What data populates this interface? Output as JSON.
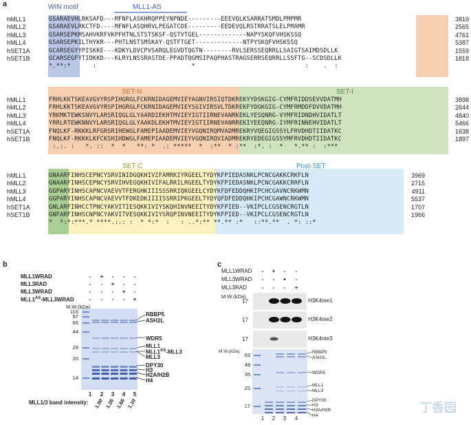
{
  "panel_a": {
    "letter": "a",
    "regions": {
      "win_motif": "WIN motif",
      "mll1_as": "MLL1-AS",
      "set_n": "SET-N",
      "set_i": "SET-I",
      "set_c": "SET-C",
      "post_set": "Post-SET"
    },
    "colors": {
      "win": "#b9c6e6",
      "orange": "#f5cfaf",
      "green": "#cfe4be",
      "darkgreen": "#a9cf95",
      "yellow": "#fbf2c0",
      "blue": "#d6ebf6",
      "as_bar": "#8aa0d8"
    },
    "block1": {
      "rows": [
        {
          "name": "hMLL1",
          "seq": "GSARAEVHLRKSAFD---MFNFLASKHRQPPEYNPNDE---------EEEVQLKSARRATSMDLPMPMR",
          "num": "3819"
        },
        {
          "name": "hMLL2",
          "seq": "GSARAEVLRKCTFD----MFNFLASQHRVLPEGATCDE---------EEDEVQLRSTRRATSLELPMAMR",
          "num": "2565"
        },
        {
          "name": "hMLL3",
          "seq": "GSARSEPKMSAHVKRFVKPFHTNLSTSTSKSF-QSTVTGEL-------------NAPYSKQFVHSKSSQ",
          "num": "4761"
        },
        {
          "name": "hMLL4",
          "seq": "GSARSEPKILTHYKR---PHTLNSTSMSKAY-QSTFTGET-------------NTPYSKQFVHSKSSQ",
          "num": "5387"
        },
        {
          "name": "hSET1A",
          "seq": "GCARSEGYYPISKKE---KDKYLDVCPVSARQLEGVDTQGTN--------RVLSERSSEQRRLLSAIGTSAIMDSDLLK",
          "num": "1559"
        },
        {
          "name": "hSET1B",
          "seq": "GCARSEGFYTIDKKD---KLRYLNSSRASTDE-PPADTQGMSIPAQPHASTRAGSERRSEQRRLLSSFTG--SCDSDLLK",
          "num": "1818"
        }
      ],
      "consensus": "*.**:*      :                          *                              :    .  :"
    },
    "block2": {
      "rows": [
        {
          "name": "hMLL1",
          "seq": "FRHLKKTSKEAVGVYRSPIHGRGLFCKRNIDAGEMVIEYAGNVIRSIQTDKREKYYDSKGIG-CYMFRIDDSEVVDATMH",
          "num": "3898"
        },
        {
          "name": "hMLL2",
          "seq": "FRHLKKTSKEAVGVYRSPIHGRGLFCKRNIDAGEMVIEYSGIVIRSVLTDKREKFYDGKGIG-CYMFRMDDFDVVDATMH",
          "num": "2644"
        },
        {
          "name": "hMLL3",
          "seq": "YRKMKTEWKSNVYLARSRIQGLGLYAARDIEKHTMVIEYIGTIIRNEVANRKEKLYESQNRG-VYMFRIDNDHVIDATLT",
          "num": "4840"
        },
        {
          "name": "hMLL4",
          "seq": "YRRLRTEWKNNVYLARSRIQGLGLYAAKDLEKHTMVIEYIGTIIRNEVANRREKIYEEQNRG-IYMFRINNEHVIDATLT",
          "num": "5466"
        },
        {
          "name": "hSET1A",
          "seq": "FNQLKF-RKKKLRFGRSRIHEWGLFAMEPIAADEMVIEYVGQNIRQMVADMREKRYVQEGIGSSYLFRVDHDTIIDATKC",
          "num": "1638"
        },
        {
          "name": "hSET1B",
          "seq": "FNQLKF-RKKKLKFCKSHIHDWGLFAMEPIAADEMVIEYVGQNIRQVIADMREKRYEDEGIGSSYMFRVDHDTIIDATKC",
          "num": "1897"
        }
      ],
      "consensus": " :.:. :   *. ::  *  *   **: *  .: *****  *  :**  * :**  :*. :  *   *.** :  :***"
    },
    "block3": {
      "rows": [
        {
          "name": "hMLL1",
          "seq": "GNAARFINHSCEPNCYSRVINIDGQKHIVIFAMRKIYRGEELTYDYKFPIEDASNKLPCNCGAKKCRKFLN",
          "num": "3969"
        },
        {
          "name": "hMLL2",
          "seq": "GNAARFINHSCEPNCYSRVIHVEGQKHIVIFALRRILRGEELTYDYKFPIEDASNKLPCNCGAKKCRRFLN",
          "num": "2715"
        },
        {
          "name": "hMLL3",
          "seq": "GGPARYINHSCAPNCVAEVVTFERGHKIIISSSRRIQKGEELCYDYKFDFEDDQHKIPCHCGAVNCRKWMN",
          "num": "4911"
        },
        {
          "name": "hMLL4",
          "seq": "GGPARYINHSCAPNCVAEVVTFDKEDKIIIISSRRIPKGEELTYDYQFDFEDDQHKIPCHCGAWNCRKWMN",
          "num": "5537"
        },
        {
          "name": "hSET1A",
          "seq": "GNLARFINHCCTPNCYAKVITIESQKKIVIYSKQHINVNEEITYDYKFPIED--VKIPCLCGSENCRGTLN",
          "num": "1707"
        },
        {
          "name": "hSET1B",
          "seq": "GNFARFINHSCNPNCYAKVITVESQKKIVIYSRQPINVNEEITYDYKFPIED--VKIPCLCGSENCRGTLN",
          "num": "1966"
        }
      ],
      "consensus": "*  *:*:***.* ****.:.: :  * *:*  :   : ..*:** **.** :*   ::**.**  . *: ::*"
    }
  },
  "panel_b": {
    "letter": "b",
    "constructs": [
      {
        "label": "MLL1WRAD",
        "signs": [
          "-",
          "+",
          "-",
          "-",
          "-"
        ]
      },
      {
        "label": "MLL3RAD",
        "signs": [
          "-",
          "-",
          "+",
          "-",
          "-"
        ]
      },
      {
        "label": "MLL3WRAD",
        "signs": [
          "-",
          "-",
          "-",
          "+",
          "-"
        ]
      },
      {
        "label": "MLL1",
        "label_sup": "AS",
        "label_tail": "-MLL3WRAD",
        "signs": [
          "-",
          "-",
          "-",
          "-",
          "+"
        ]
      }
    ],
    "mw_header": "M.W.(kDa)",
    "markers": [
      "116",
      "97",
      "66",
      "44",
      "29",
      "20",
      "14"
    ],
    "bands": [
      "RBBP5",
      "ASH2L",
      "WDR5",
      "MLL1",
      "MLL1^AS-MLL3",
      "MLL3",
      "DPY30",
      "H3",
      "H2A/H2B",
      "H4"
    ],
    "band_mll1as": "MLL1",
    "band_mll1as_sup": "AS",
    "band_mll1as_tail": "-MLL3",
    "lanes": [
      "1",
      "2",
      "3",
      "4",
      "5"
    ],
    "intensity_label": "MLL1/3 band intensity:",
    "intensities": [
      "1.00",
      "1.26",
      "1.66",
      "1.10"
    ]
  },
  "panel_c": {
    "letter": "c",
    "constructs": [
      {
        "label": "MLL1WRAD",
        "signs": [
          "-",
          "+",
          "-",
          "-"
        ]
      },
      {
        "label": "MLL3WRAD",
        "signs": [
          "-",
          "-",
          "+",
          "-"
        ]
      },
      {
        "label": "MLL3RAD",
        "signs": [
          "-",
          "-",
          "-",
          "+"
        ]
      }
    ],
    "mw_header": "M.W.(kDa)",
    "blots": [
      {
        "label": "H3K4me1",
        "mw": "17"
      },
      {
        "label": "H3K4me2",
        "mw": "17"
      },
      {
        "label": "H3K4me3",
        "mw": "17"
      }
    ],
    "gel_mw_header": "M.W.(kDa)",
    "gel_markers": [
      "63",
      "48",
      "35",
      "25",
      "17"
    ],
    "gel_bands": [
      "RBBP5",
      "ASH2L",
      "WDR5",
      "MLL1",
      "MLL3",
      "DPY30",
      "H3",
      "H2A/H2B",
      "H4"
    ],
    "lanes": [
      "1",
      "2",
      "3",
      "4"
    ]
  },
  "watermark": "丁香园"
}
